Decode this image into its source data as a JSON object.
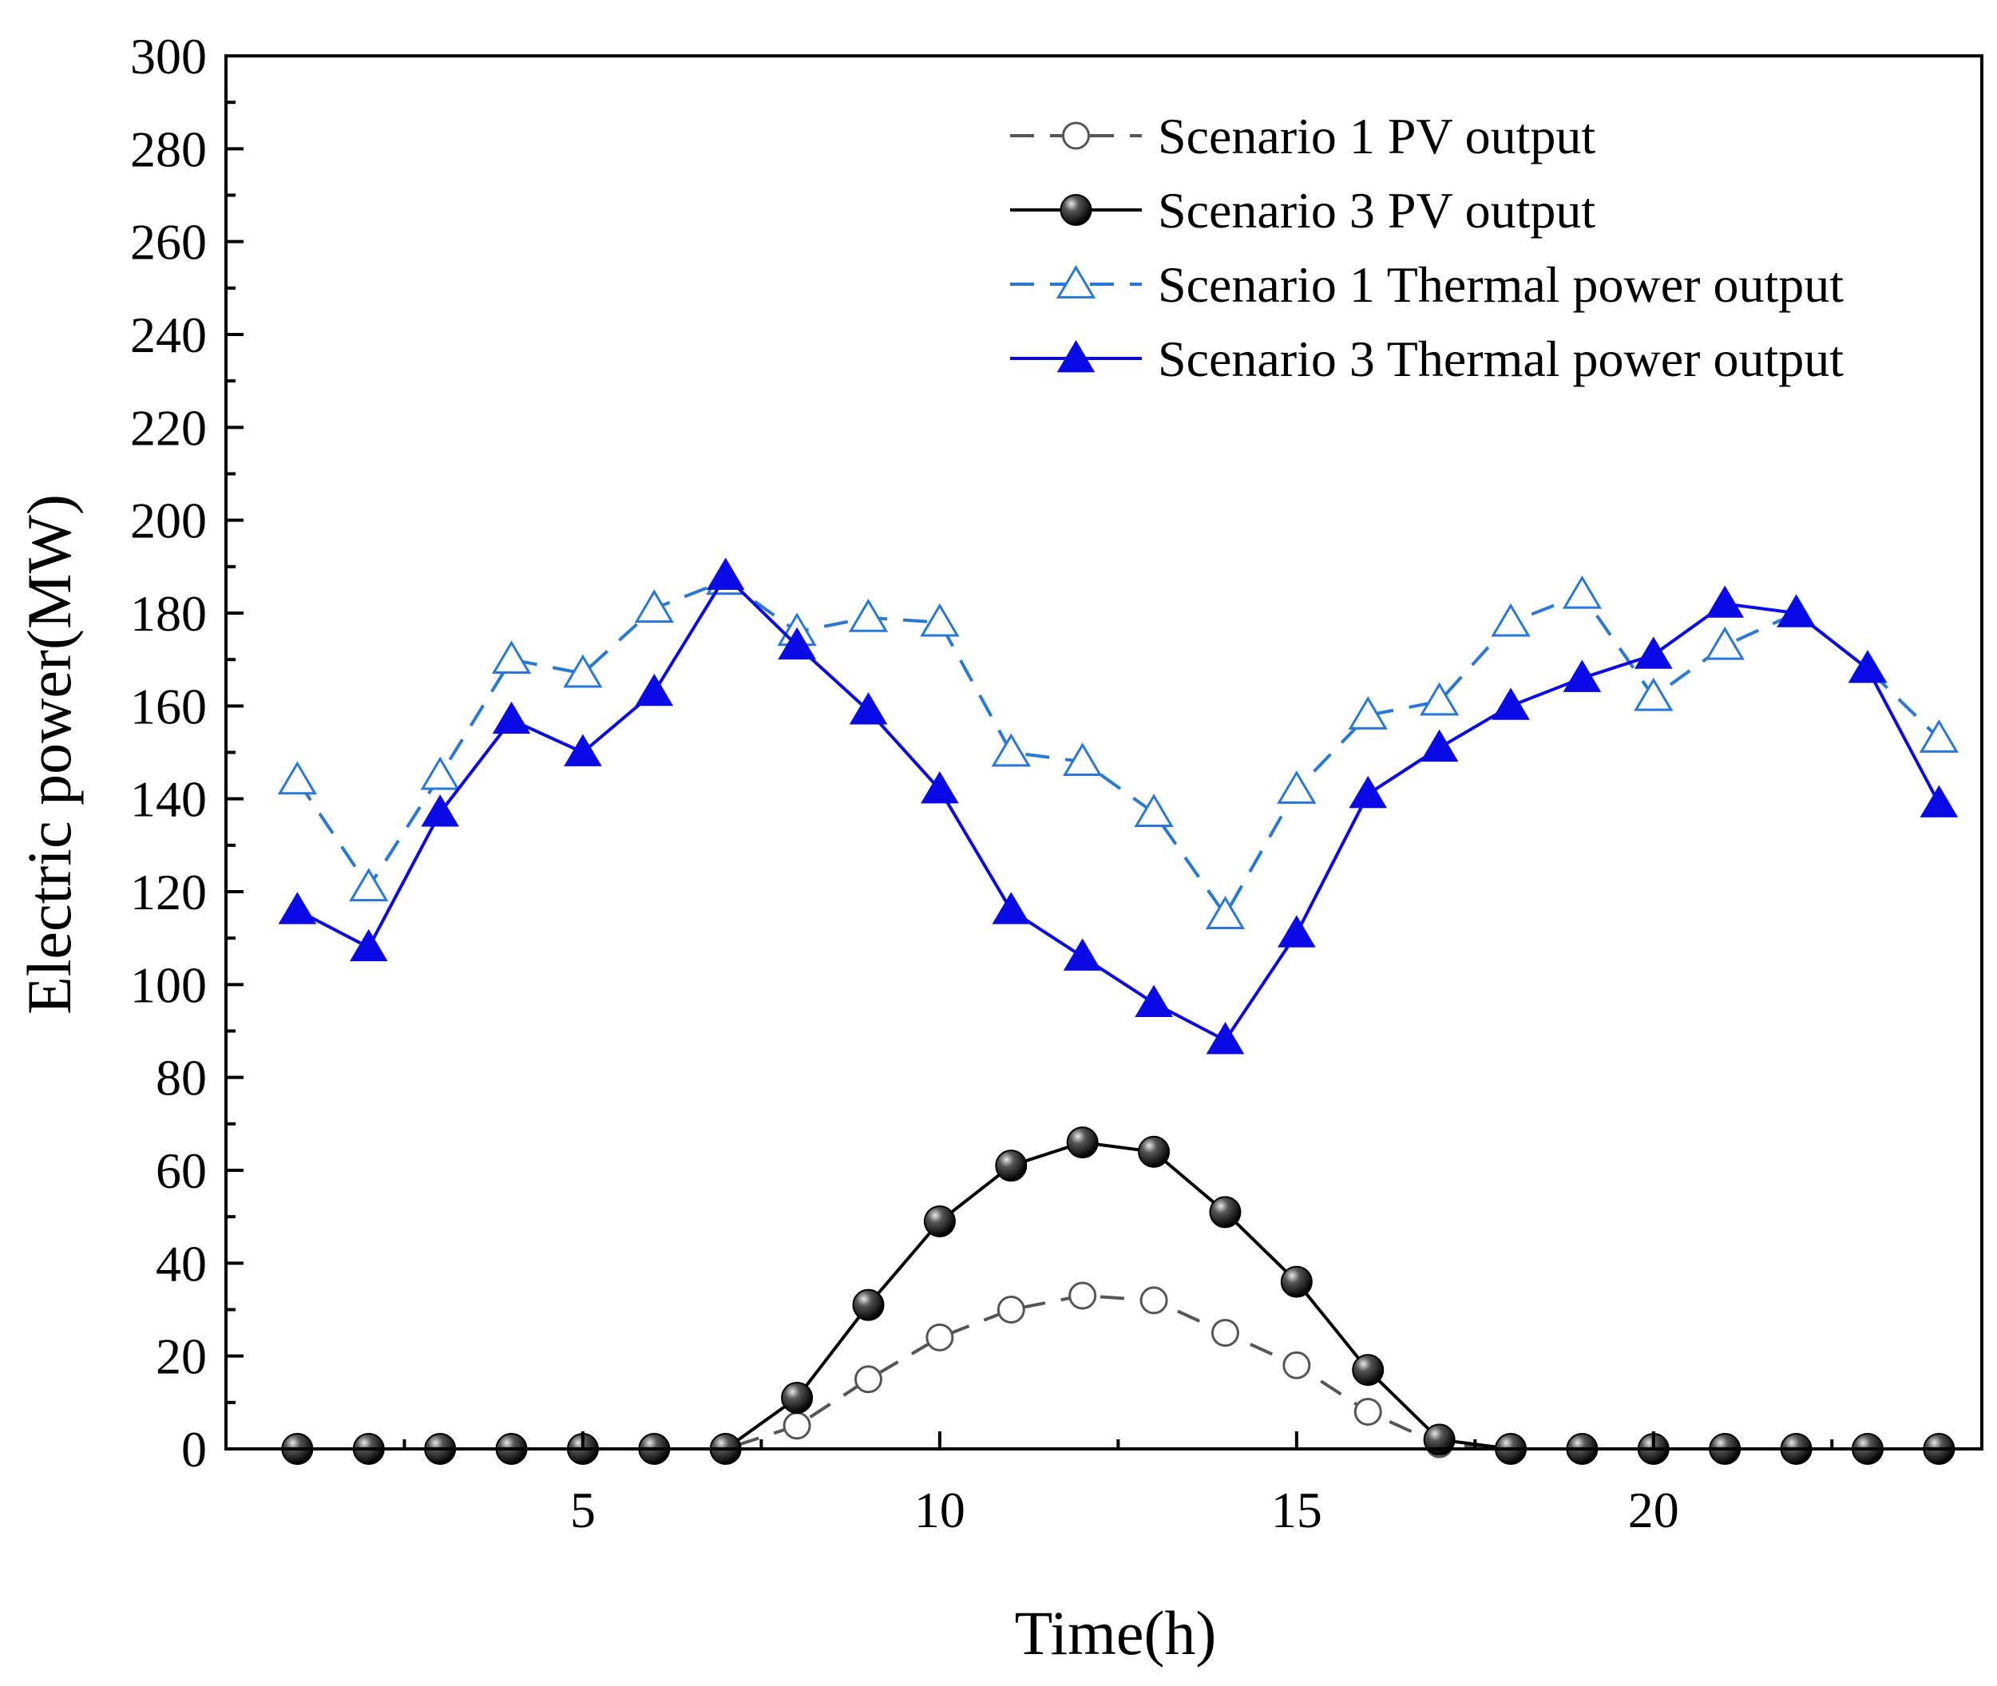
{
  "chart_data": {
    "type": "line",
    "title": "",
    "xlabel": "Time(h)",
    "ylabel": "Electric power(MW)",
    "xlim": [
      0,
      24.6
    ],
    "ylim": [
      0,
      300
    ],
    "x_ticks": [
      5,
      10,
      15,
      20
    ],
    "x_tick_labels": [
      "5",
      "10",
      "15",
      "20"
    ],
    "y_ticks": [
      0,
      20,
      40,
      60,
      80,
      100,
      120,
      140,
      160,
      180,
      200,
      220,
      240,
      260,
      280,
      300
    ],
    "y_tick_labels": [
      "0",
      "20",
      "40",
      "60",
      "80",
      "100",
      "120",
      "140",
      "160",
      "180",
      "200",
      "220",
      "240",
      "260",
      "280",
      "300"
    ],
    "grid": false,
    "legend_position": "top-right",
    "x": [
      1,
      2,
      3,
      4,
      5,
      6,
      7,
      8,
      9,
      10,
      11,
      12,
      13,
      14,
      15,
      16,
      17,
      18,
      19,
      20,
      21,
      22,
      23,
      24
    ],
    "series": [
      {
        "name": "Scenario 1 PV output",
        "color": "#555555",
        "line_style": "dashed",
        "marker": "open-circle",
        "values": [
          0,
          0,
          0,
          0,
          0,
          0,
          0,
          5,
          15,
          24,
          30,
          33,
          32,
          25,
          18,
          8,
          1,
          0,
          0,
          0,
          0,
          0,
          0,
          0
        ]
      },
      {
        "name": "Scenario 3 PV output",
        "color": "#000000",
        "line_style": "solid",
        "marker": "filled-circle",
        "values": [
          0,
          0,
          0,
          0,
          0,
          0,
          0,
          11,
          31,
          49,
          61,
          66,
          64,
          51,
          36,
          17,
          2,
          0,
          0,
          0,
          0,
          0,
          0,
          0
        ]
      },
      {
        "name": "Scenario 1 Thermal power output",
        "color": "#2878d8",
        "line_style": "dashed",
        "marker": "open-triangle",
        "values": [
          144,
          121,
          145,
          170,
          167,
          181,
          187,
          176,
          179,
          178,
          150,
          148,
          137,
          115,
          142,
          158,
          161,
          178,
          184,
          162,
          173,
          180,
          168,
          153
        ]
      },
      {
        "name": "Scenario 3 Thermal power output",
        "color": "#0a0ae6",
        "line_style": "solid",
        "marker": "filled-triangle",
        "values": [
          116,
          108,
          137,
          157,
          150,
          163,
          188,
          173,
          159,
          142,
          116,
          106,
          96,
          88,
          111,
          141,
          151,
          160,
          166,
          171,
          182,
          180,
          168,
          139
        ]
      }
    ]
  }
}
